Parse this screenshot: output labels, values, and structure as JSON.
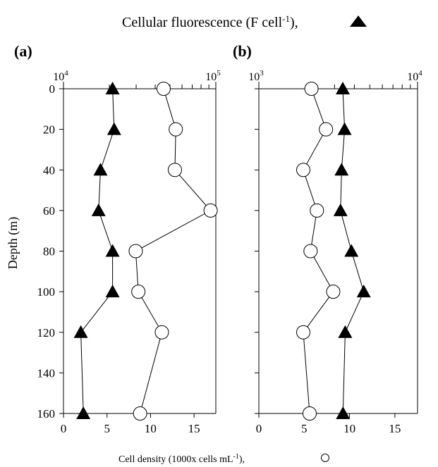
{
  "figure": {
    "top_title": "Cellular fluorescence (F cell",
    "top_title_sup": "-1",
    "top_title_tail": "),",
    "bottom_title": "Cell density (1000x cells mL",
    "bottom_title_sup": "-1",
    "bottom_title_tail": "),",
    "ylabel": "Depth (m)",
    "triangle_marker": "filled-triangle-icon",
    "circle_marker": "open-circle-icon"
  },
  "chart_data": [
    {
      "type": "line",
      "panel_label": "(a)",
      "ylabel": "Depth (m)",
      "y_reversed": true,
      "ylim": [
        0,
        160
      ],
      "yticks": [
        0,
        20,
        40,
        60,
        80,
        100,
        120,
        140,
        160
      ],
      "bottom_axis": {
        "xlim": [
          0,
          17.5
        ],
        "ticks": [
          0,
          5,
          10,
          15
        ]
      },
      "top_axis": {
        "scale": "log",
        "xlim": [
          10000,
          100000
        ],
        "tick_labels": [
          {
            "base": "10",
            "exp": "4",
            "value": 10000
          },
          {
            "base": "10",
            "exp": "5",
            "value": 100000
          }
        ]
      },
      "series": [
        {
          "marker": "triangle",
          "axis": "top",
          "points": [
            {
              "x": 21000,
              "depth": 0
            },
            {
              "x": 21500,
              "depth": 20
            },
            {
              "x": 17500,
              "depth": 40
            },
            {
              "x": 17000,
              "depth": 60
            },
            {
              "x": 21000,
              "depth": 80
            },
            {
              "x": 21000,
              "depth": 100
            },
            {
              "x": 13000,
              "depth": 120
            },
            {
              "x": 13500,
              "depth": 160
            }
          ]
        },
        {
          "marker": "circle",
          "axis": "bottom",
          "points": [
            {
              "x": 11.5,
              "depth": 0
            },
            {
              "x": 12.9,
              "depth": 20
            },
            {
              "x": 12.8,
              "depth": 40
            },
            {
              "x": 16.9,
              "depth": 60
            },
            {
              "x": 8.3,
              "depth": 80
            },
            {
              "x": 8.6,
              "depth": 100
            },
            {
              "x": 11.3,
              "depth": 120
            },
            {
              "x": 8.8,
              "depth": 160
            }
          ]
        }
      ]
    },
    {
      "type": "line",
      "panel_label": "(b)",
      "y_reversed": true,
      "ylim": [
        0,
        160
      ],
      "yticks": [
        0,
        20,
        40,
        60,
        80,
        100,
        120,
        140,
        160
      ],
      "bottom_axis": {
        "xlim": [
          0,
          17.5
        ],
        "ticks": [
          0,
          5,
          10,
          15
        ]
      },
      "top_axis": {
        "scale": "log",
        "xlim": [
          1000,
          10000
        ],
        "tick_labels": [
          {
            "base": "10",
            "exp": "3",
            "value": 1000
          },
          {
            "base": "10",
            "exp": "4",
            "value": 10000
          }
        ]
      },
      "series": [
        {
          "marker": "triangle",
          "axis": "top",
          "points": [
            {
              "x": 3380,
              "depth": 0
            },
            {
              "x": 3470,
              "depth": 20
            },
            {
              "x": 3320,
              "depth": 40
            },
            {
              "x": 3270,
              "depth": 60
            },
            {
              "x": 3830,
              "depth": 80
            },
            {
              "x": 4580,
              "depth": 100
            },
            {
              "x": 3500,
              "depth": 120
            },
            {
              "x": 3390,
              "depth": 160
            }
          ]
        },
        {
          "marker": "circle",
          "axis": "bottom",
          "points": [
            {
              "x": 5.8,
              "depth": 0
            },
            {
              "x": 7.4,
              "depth": 20
            },
            {
              "x": 4.9,
              "depth": 40
            },
            {
              "x": 6.4,
              "depth": 60
            },
            {
              "x": 5.7,
              "depth": 80
            },
            {
              "x": 8.2,
              "depth": 100
            },
            {
              "x": 4.9,
              "depth": 120
            },
            {
              "x": 5.6,
              "depth": 160
            }
          ]
        }
      ]
    }
  ]
}
